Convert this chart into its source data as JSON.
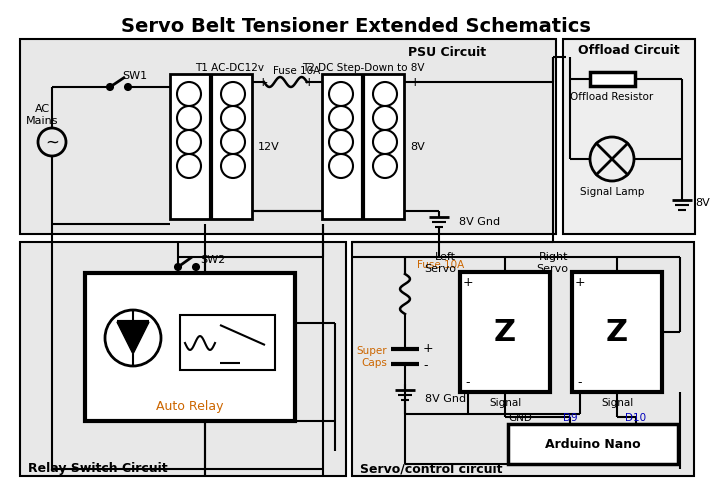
{
  "title": "Servo Belt Tensioner Extended Schematics",
  "bg": "#ffffff",
  "panel": "#e8e8e8",
  "black": "#000000",
  "orange": "#cc6600",
  "blue": "#0000bb",
  "psu_label": "PSU Circuit",
  "offload_label": "Offload Circuit",
  "relay_label": "Relay Switch Circuit",
  "servo_label": "Servo/control circuit",
  "sw1": "SW1",
  "sw2": "SW2",
  "t1_label": "T1 AC-DC12v",
  "fuse1_label": "Fuse 10A",
  "t2_label": "T2 DC Step-Down to 8V",
  "v12": "12V",
  "v8_psu": "8V",
  "gnd8v": "8V Gnd",
  "offload_r": "Offload Resistor",
  "sig_lamp": "Signal Lamp",
  "v8_off": "8V",
  "auto_relay": "Auto Relay",
  "fuse2_label": "Fuse 10A",
  "super_caps": "Super\nCaps",
  "gnd8v2": "8V Gnd",
  "left_servo": "Left\nServo",
  "right_servo": "Right\nServo",
  "arduino": "Arduino Nano",
  "gnd_label": "GND",
  "d9": "D9",
  "d10": "D10",
  "ac_mains": "AC\nMains"
}
